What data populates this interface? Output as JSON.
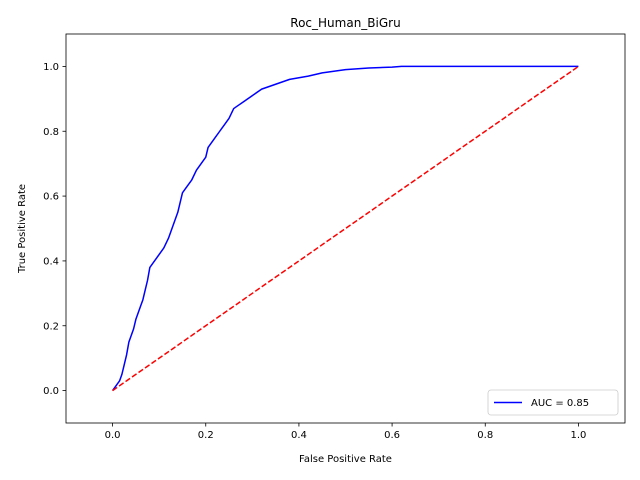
{
  "chart_data": {
    "type": "line",
    "title": "Roc_Human_BiGru",
    "xlabel": "False Positive Rate",
    "ylabel": "True Positive Rate",
    "xlim": [
      -0.1,
      1.1
    ],
    "ylim": [
      -0.1,
      1.1
    ],
    "xticks": [
      0.0,
      0.2,
      0.4,
      0.6,
      0.8,
      1.0
    ],
    "yticks": [
      0.0,
      0.2,
      0.4,
      0.6,
      0.8,
      1.0
    ],
    "xtick_labels": [
      "0.0",
      "0.2",
      "0.4",
      "0.6",
      "0.8",
      "1.0"
    ],
    "ytick_labels": [
      "0.0",
      "0.2",
      "0.4",
      "0.6",
      "0.8",
      "1.0"
    ],
    "grid": false,
    "legend_position": "lower right",
    "series": [
      {
        "name": "AUC = 0.85",
        "color": "#0000ff",
        "style": "solid",
        "x": [
          0.0,
          0.005,
          0.01,
          0.015,
          0.02,
          0.025,
          0.03,
          0.035,
          0.04,
          0.045,
          0.05,
          0.06,
          0.065,
          0.07,
          0.075,
          0.08,
          0.085,
          0.09,
          0.095,
          0.1,
          0.11,
          0.12,
          0.125,
          0.13,
          0.14,
          0.145,
          0.15,
          0.155,
          0.16,
          0.17,
          0.18,
          0.19,
          0.2,
          0.205,
          0.21,
          0.22,
          0.23,
          0.24,
          0.25,
          0.26,
          0.27,
          0.28,
          0.3,
          0.32,
          0.34,
          0.36,
          0.38,
          0.4,
          0.42,
          0.45,
          0.5,
          0.55,
          0.6,
          0.62,
          0.7,
          0.8,
          0.9,
          1.0
        ],
        "y": [
          0.0,
          0.01,
          0.02,
          0.03,
          0.05,
          0.08,
          0.11,
          0.15,
          0.17,
          0.19,
          0.22,
          0.26,
          0.28,
          0.31,
          0.34,
          0.38,
          0.39,
          0.4,
          0.41,
          0.42,
          0.44,
          0.47,
          0.49,
          0.51,
          0.55,
          0.58,
          0.61,
          0.62,
          0.63,
          0.65,
          0.68,
          0.7,
          0.72,
          0.75,
          0.76,
          0.78,
          0.8,
          0.82,
          0.84,
          0.87,
          0.88,
          0.89,
          0.91,
          0.93,
          0.94,
          0.95,
          0.96,
          0.965,
          0.97,
          0.98,
          0.99,
          0.995,
          0.998,
          1.0,
          1.0,
          1.0,
          1.0,
          1.0
        ]
      },
      {
        "color": "#ff0000",
        "style": "dashed",
        "x": [
          0.0,
          1.0
        ],
        "y": [
          0.0,
          1.0
        ]
      }
    ]
  }
}
